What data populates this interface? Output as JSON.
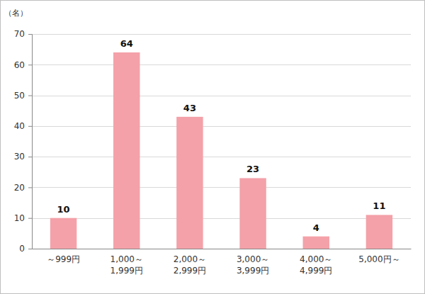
{
  "chart_data": {
    "type": "bar",
    "ylabel": "（名）",
    "categories": [
      "～999円",
      "1,000～\n1,999円",
      "2,000～\n2,999円",
      "3,000～\n3,999円",
      "4,000～\n4,999円",
      "5,000円～"
    ],
    "values": [
      10,
      64,
      43,
      23,
      4,
      11
    ],
    "color": "#f4a1a9",
    "ylim": [
      0,
      70
    ],
    "yticks": [
      0,
      10,
      20,
      30,
      40,
      50,
      60,
      70
    ],
    "grid": true,
    "data_labels": true
  }
}
